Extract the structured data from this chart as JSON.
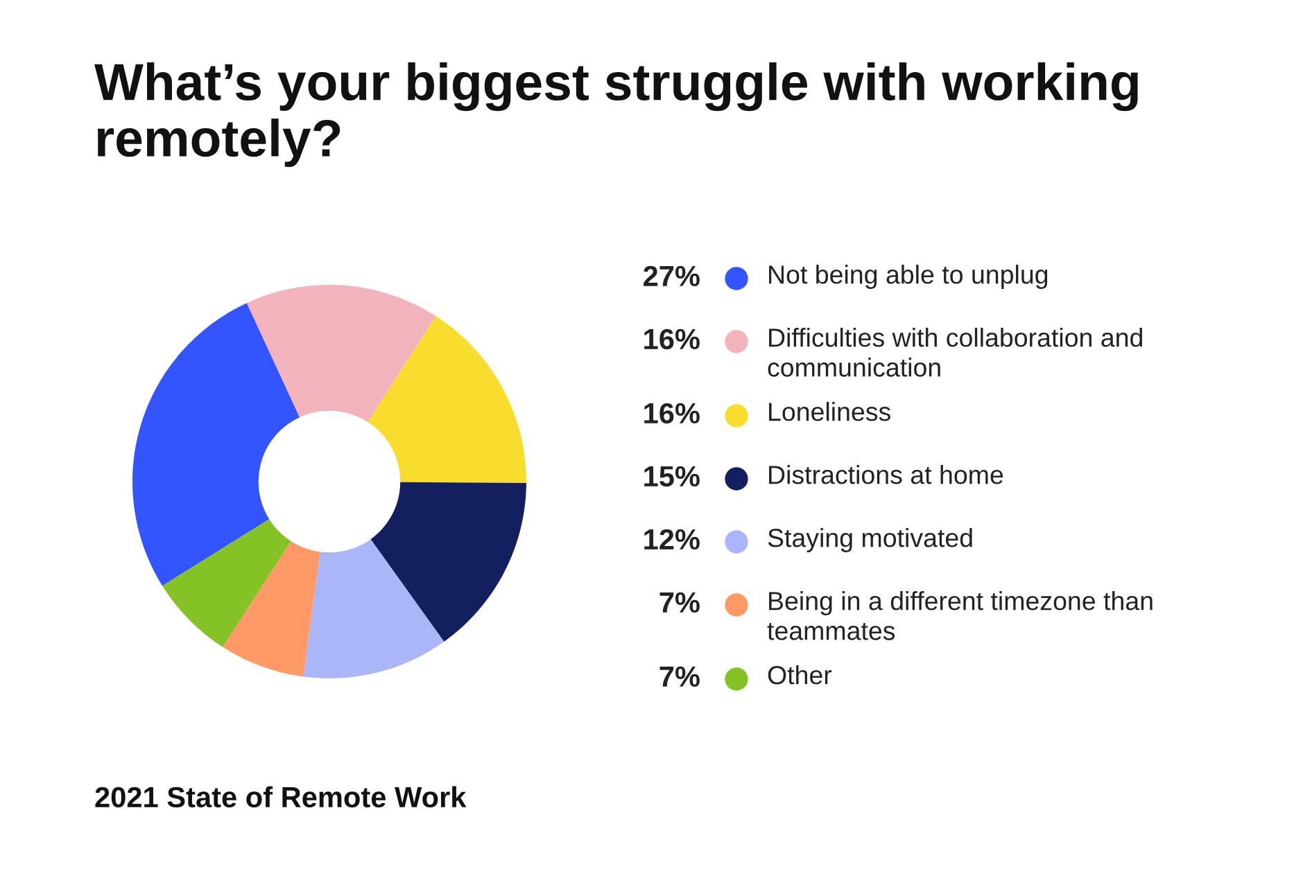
{
  "chart_data": {
    "type": "donut",
    "title": "What’s your biggest struggle with working remotely?",
    "categories": [
      "Not being able to unplug",
      "Difficulties with collaboration and communication",
      "Loneliness",
      "Distractions at home",
      "Staying motivated",
      "Being in a different timezone than teammates",
      "Other"
    ],
    "values": [
      27,
      16,
      16,
      15,
      12,
      7,
      7
    ],
    "colors": [
      "#3355ff",
      "#f2b3bd",
      "#f9dd2e",
      "#131f5e",
      "#aab6f8",
      "#ff9966",
      "#84c225"
    ],
    "value_labels": [
      "27%",
      "16%",
      "16%",
      "15%",
      "12%",
      "7%",
      "7%"
    ],
    "legend": "right",
    "annotations": [
      "2021 State of Remote Work"
    ]
  }
}
